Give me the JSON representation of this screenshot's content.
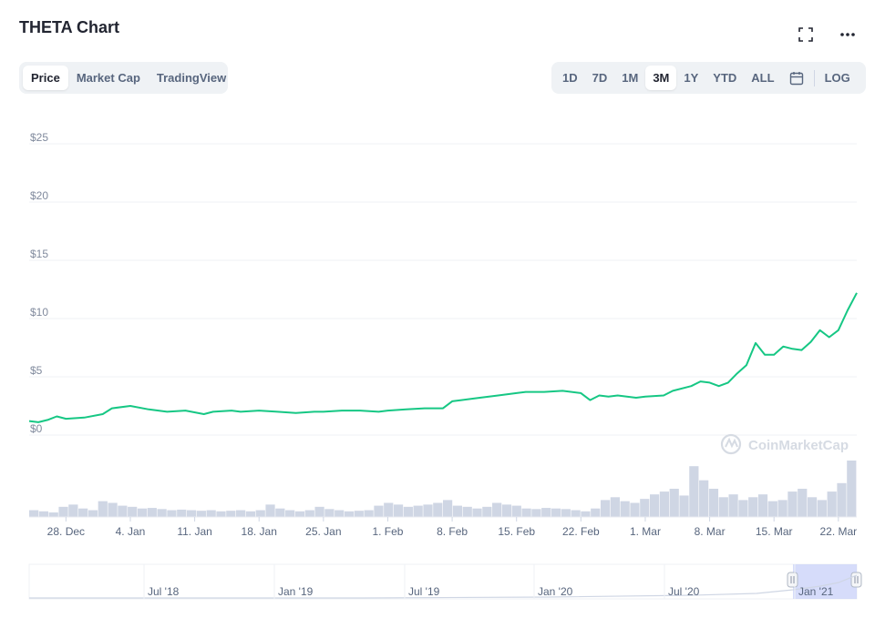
{
  "title": "THETA Chart",
  "icons": {
    "fullscreen": "fullscreen-icon",
    "more": "more-horizontal-icon",
    "calendar": "calendar-icon",
    "logo": "coinmarketcap-logo-icon"
  },
  "tabs": [
    {
      "label": "Price",
      "active": true
    },
    {
      "label": "Market Cap",
      "active": false
    },
    {
      "label": "TradingView",
      "active": false
    }
  ],
  "ranges": [
    {
      "label": "1D",
      "active": false
    },
    {
      "label": "7D",
      "active": false
    },
    {
      "label": "1M",
      "active": false
    },
    {
      "label": "3M",
      "active": true
    },
    {
      "label": "1Y",
      "active": false
    },
    {
      "label": "YTD",
      "active": false
    },
    {
      "label": "ALL",
      "active": false
    }
  ],
  "log_label": "LOG",
  "watermark": "CoinMarketCap",
  "colors": {
    "line": "#16c784",
    "grid": "#eff2f5",
    "volume": "#cfd6e4",
    "navigator_selection": "#c5cdf8",
    "text": "#58667e"
  },
  "chart_data": {
    "type": "line",
    "y_ticks": [
      "$0",
      "$5",
      "$10",
      "$15",
      "$20",
      "$25"
    ],
    "ylim": [
      0,
      25
    ],
    "x_ticks": [
      "28. Dec",
      "4. Jan",
      "11. Jan",
      "18. Jan",
      "25. Jan",
      "1. Feb",
      "8. Feb",
      "15. Feb",
      "22. Feb",
      "1. Mar",
      "8. Mar",
      "15. Mar",
      "22. Mar"
    ],
    "x_tick_days": [
      3,
      10,
      17,
      24,
      31,
      38,
      45,
      52,
      59,
      66,
      73,
      80,
      87
    ],
    "xlim": [
      -1,
      89
    ],
    "grid": true,
    "series": [
      {
        "x": [
          -1,
          0,
          1,
          2,
          3,
          5,
          7,
          8,
          10,
          12,
          14,
          16,
          18,
          19,
          21,
          22,
          24,
          26,
          28,
          30,
          31,
          33,
          35,
          37,
          38,
          40,
          42,
          44,
          45,
          46,
          48,
          50,
          52,
          53,
          55,
          57,
          59,
          60,
          61,
          62,
          63,
          65,
          66,
          68,
          69,
          71,
          72,
          73,
          74,
          75,
          76,
          77,
          78,
          79,
          80,
          81,
          82,
          83,
          84,
          85,
          86,
          87,
          88,
          89
        ],
        "values": [
          1.2,
          1.1,
          1.3,
          1.6,
          1.4,
          1.5,
          1.8,
          2.3,
          2.5,
          2.2,
          2.0,
          2.1,
          1.8,
          2.0,
          2.1,
          2.0,
          2.1,
          2.0,
          1.9,
          2.0,
          2.0,
          2.1,
          2.1,
          2.0,
          2.1,
          2.2,
          2.3,
          2.3,
          2.9,
          3.0,
          3.2,
          3.4,
          3.6,
          3.7,
          3.7,
          3.8,
          3.6,
          3.0,
          3.4,
          3.3,
          3.4,
          3.2,
          3.3,
          3.4,
          3.8,
          4.2,
          4.6,
          4.5,
          4.2,
          4.5,
          5.3,
          6.0,
          7.9,
          6.9,
          6.9,
          7.6,
          7.4,
          7.3,
          8.0,
          9.0,
          8.4,
          9.0,
          10.7,
          12.2
        ]
      }
    ],
    "volume_relative": [
      0.12,
      0.1,
      0.08,
      0.18,
      0.22,
      0.15,
      0.12,
      0.28,
      0.25,
      0.2,
      0.18,
      0.15,
      0.16,
      0.14,
      0.12,
      0.13,
      0.12,
      0.11,
      0.12,
      0.1,
      0.11,
      0.12,
      0.1,
      0.12,
      0.22,
      0.15,
      0.12,
      0.1,
      0.12,
      0.18,
      0.14,
      0.12,
      0.1,
      0.11,
      0.12,
      0.2,
      0.25,
      0.22,
      0.18,
      0.2,
      0.22,
      0.25,
      0.3,
      0.2,
      0.18,
      0.15,
      0.18,
      0.25,
      0.22,
      0.2,
      0.15,
      0.14,
      0.16,
      0.15,
      0.14,
      0.12,
      0.1,
      0.15,
      0.3,
      0.35,
      0.28,
      0.25,
      0.32,
      0.4,
      0.45,
      0.5,
      0.38,
      0.9,
      0.65,
      0.5,
      0.35,
      0.4,
      0.3,
      0.35,
      0.4,
      0.28,
      0.3,
      0.45,
      0.5,
      0.35,
      0.3,
      0.45,
      0.6,
      1.0
    ],
    "navigator": {
      "x_ticks": [
        "Jul '18",
        "Jan '19",
        "Jul '19",
        "Jan '20",
        "Jul '20",
        "Jan '21"
      ],
      "selected_range": "Dec 2020 – Mar 2021"
    }
  }
}
